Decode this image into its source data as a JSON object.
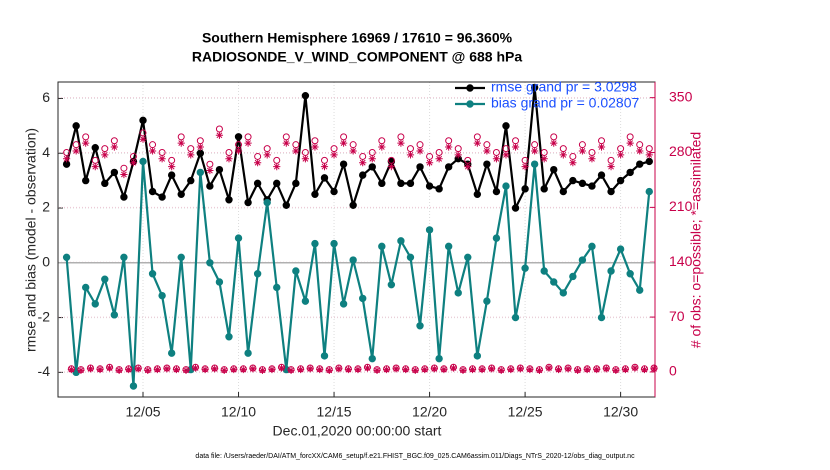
{
  "chart_data": {
    "type": "line",
    "title": "Southern Hemisphere 16969 / 17610 = 96.360%",
    "subtitle": "RADIOSONDE_V_WIND_COMPONENT @ 688 hPa",
    "xlabel": "Dec.01,2020 00:00:00 start",
    "ylabel": "rmse and bias (model - observation)",
    "y2label": "# of obs: o=possible; *=assimilated",
    "footnote": "data file: /Users/raeder/DAI/ATM_forcXX/CAM6_setup/f.e21.FHIST_BGC.f09_025.CAM6assim.011/Diags_NTrS_2020-12/obs_diag_output.nc",
    "grid": true,
    "legend": "upper right",
    "legend_text_color": "#1a4fff",
    "y2_color": "#c8004a",
    "xlim": [
      0.55,
      31.8
    ],
    "xticks": [
      {
        "value": 5,
        "label": "12/05"
      },
      {
        "value": 10,
        "label": "12/10"
      },
      {
        "value": 15,
        "label": "12/15"
      },
      {
        "value": 20,
        "label": "12/20"
      },
      {
        "value": 25,
        "label": "12/25"
      },
      {
        "value": 30,
        "label": "12/30"
      }
    ],
    "ylim": [
      -4.9,
      6.6
    ],
    "yticks": [
      -4,
      -2,
      0,
      2,
      4,
      6
    ],
    "y2lim": [
      -32,
      370
    ],
    "y2ticks": [
      0,
      70,
      140,
      210,
      280,
      350
    ],
    "x": [
      1,
      1.5,
      2,
      2.5,
      3,
      3.5,
      4,
      4.5,
      5,
      5.5,
      6,
      6.5,
      7,
      7.5,
      8,
      8.5,
      9,
      9.5,
      10,
      10.5,
      11,
      11.5,
      12,
      12.5,
      13,
      13.5,
      14,
      14.5,
      15,
      15.5,
      16,
      16.5,
      17,
      17.5,
      18,
      18.5,
      19,
      19.5,
      20,
      20.5,
      21,
      21.5,
      22,
      22.5,
      23,
      23.5,
      24,
      24.5,
      25,
      25.5,
      26,
      26.5,
      27,
      27.5,
      28,
      28.5,
      29,
      29.5,
      30,
      30.5,
      31,
      31.5
    ],
    "series": [
      {
        "name": "rmse grand pr = 3.0298",
        "color": "#000000",
        "marker": "filled",
        "values": [
          3.6,
          5.0,
          3.0,
          4.2,
          2.9,
          3.3,
          2.4,
          3.7,
          5.2,
          2.6,
          2.4,
          3.2,
          2.5,
          3.0,
          4.0,
          2.8,
          3.4,
          2.3,
          4.6,
          2.2,
          2.9,
          2.3,
          2.9,
          2.1,
          2.9,
          6.1,
          2.5,
          3.1,
          2.6,
          3.6,
          2.1,
          3.2,
          3.5,
          2.9,
          3.7,
          2.9,
          2.9,
          3.5,
          2.8,
          2.7,
          3.5,
          3.8,
          3.6,
          2.5,
          3.6,
          2.6,
          5.0,
          2.0,
          2.7,
          6.4,
          2.7,
          3.4,
          2.6,
          3.0,
          2.9,
          2.8,
          3.2,
          2.6,
          3.0,
          3.3,
          3.6,
          3.7
        ]
      },
      {
        "name": "bias grand pr = 0.02807",
        "color": "#0e8080",
        "marker": "filled",
        "values": [
          0.2,
          -4.0,
          -0.9,
          -1.5,
          -0.6,
          -1.9,
          0.2,
          -4.5,
          3.7,
          -0.4,
          -1.2,
          -3.3,
          0.2,
          -3.9,
          3.3,
          0.0,
          -0.7,
          -2.7,
          0.9,
          -3.3,
          -0.4,
          2.2,
          -0.9,
          -3.9,
          -0.3,
          -1.4,
          0.7,
          -3.4,
          0.7,
          -1.5,
          0.1,
          -1.3,
          -3.5,
          0.6,
          -0.8,
          0.8,
          0.2,
          -2.3,
          1.2,
          -3.5,
          0.6,
          -1.1,
          0.2,
          -3.4,
          -1.4,
          0.9,
          2.8,
          -2.0,
          -0.2,
          3.6,
          -0.3,
          -0.7,
          -1.1,
          -0.5,
          0.1,
          0.6,
          -2.0,
          -0.3,
          0.5,
          -0.4,
          -1.0,
          2.6
        ]
      },
      {
        "color": "#c8004a",
        "marker": "open",
        "line": false,
        "axis": "y2",
        "values": [
          280,
          290,
          300,
          270,
          285,
          295,
          260,
          275,
          305,
          290,
          280,
          270,
          300,
          285,
          295,
          265,
          310,
          280,
          290,
          300,
          275,
          285,
          270,
          300,
          290,
          280,
          295,
          270,
          285,
          300,
          290,
          275,
          280,
          295,
          270,
          300,
          285,
          290,
          275,
          280,
          295,
          285,
          270,
          300,
          290,
          280,
          285,
          295,
          270,
          290,
          280,
          300,
          285,
          275,
          290,
          280,
          295,
          270,
          285,
          300,
          290,
          285
        ]
      },
      {
        "color": "#c8004a",
        "marker": "asterisk",
        "line": false,
        "axis": "y2",
        "values": [
          272,
          282,
          292,
          262,
          277,
          287,
          252,
          267,
          297,
          282,
          272,
          262,
          292,
          277,
          287,
          257,
          302,
          272,
          282,
          292,
          267,
          277,
          262,
          292,
          282,
          272,
          287,
          262,
          277,
          292,
          282,
          267,
          272,
          287,
          262,
          292,
          277,
          282,
          267,
          272,
          287,
          277,
          262,
          292,
          282,
          272,
          277,
          287,
          262,
          282,
          272,
          292,
          277,
          267,
          282,
          272,
          287,
          262,
          277,
          292,
          282,
          277
        ]
      },
      {
        "color": "#c8004a",
        "marker": "open",
        "line": false,
        "axis": "y2",
        "x": [
          1.25,
          1.75,
          2.25,
          2.75,
          3.25,
          3.75,
          4.25,
          4.75,
          5.25,
          5.75,
          6.25,
          6.75,
          7.25,
          7.75,
          8.25,
          8.75,
          9.25,
          9.75,
          10.25,
          10.75,
          11.25,
          11.75,
          12.25,
          12.75,
          13.25,
          13.75,
          14.25,
          14.75,
          15.25,
          15.75,
          16.25,
          16.75,
          17.25,
          17.75,
          18.25,
          18.75,
          19.25,
          19.75,
          20.25,
          20.75,
          21.25,
          21.75,
          22.25,
          22.75,
          23.25,
          23.75,
          24.25,
          24.75,
          25.25,
          25.75,
          26.25,
          26.75,
          27.25,
          27.75,
          28.25,
          28.75,
          29.25,
          29.75,
          30.25,
          30.75,
          31.25,
          31.75
        ],
        "values": [
          4,
          3,
          5,
          4,
          6,
          3,
          4,
          5,
          3,
          4,
          5,
          4,
          3,
          6,
          4,
          5,
          3,
          4,
          4,
          5,
          3,
          4,
          6,
          3,
          4,
          5,
          4,
          3,
          5,
          4,
          4,
          6,
          3,
          4,
          5,
          4,
          3,
          4,
          5,
          4,
          6,
          3,
          4,
          4,
          5,
          3,
          4,
          5,
          4,
          3,
          6,
          4,
          5,
          3,
          4,
          4,
          5,
          3,
          4,
          6,
          4,
          5
        ]
      },
      {
        "color": "#c8004a",
        "marker": "asterisk",
        "line": false,
        "axis": "y2",
        "x": [
          1.25,
          1.75,
          2.25,
          2.75,
          3.25,
          3.75,
          4.25,
          4.75,
          5.25,
          5.75,
          6.25,
          6.75,
          7.25,
          7.75,
          8.25,
          8.75,
          9.25,
          9.75,
          10.25,
          10.75,
          11.25,
          11.75,
          12.25,
          12.75,
          13.25,
          13.75,
          14.25,
          14.75,
          15.25,
          15.75,
          16.25,
          16.75,
          17.25,
          17.75,
          18.25,
          18.75,
          19.25,
          19.75,
          20.25,
          20.75,
          21.25,
          21.75,
          22.25,
          22.75,
          23.25,
          23.75,
          24.25,
          24.75,
          25.25,
          25.75,
          26.25,
          26.75,
          27.25,
          27.75,
          28.25,
          28.75,
          29.25,
          29.75,
          30.25,
          30.75,
          31.25,
          31.75
        ],
        "values": [
          3,
          2,
          4,
          3,
          5,
          2,
          3,
          4,
          2,
          3,
          4,
          3,
          2,
          5,
          3,
          4,
          2,
          3,
          3,
          4,
          2,
          3,
          5,
          2,
          3,
          4,
          3,
          2,
          4,
          3,
          3,
          5,
          2,
          3,
          4,
          3,
          2,
          3,
          4,
          3,
          5,
          2,
          3,
          3,
          4,
          2,
          3,
          4,
          3,
          2,
          5,
          3,
          4,
          2,
          3,
          3,
          4,
          2,
          3,
          5,
          3,
          4
        ]
      }
    ]
  }
}
